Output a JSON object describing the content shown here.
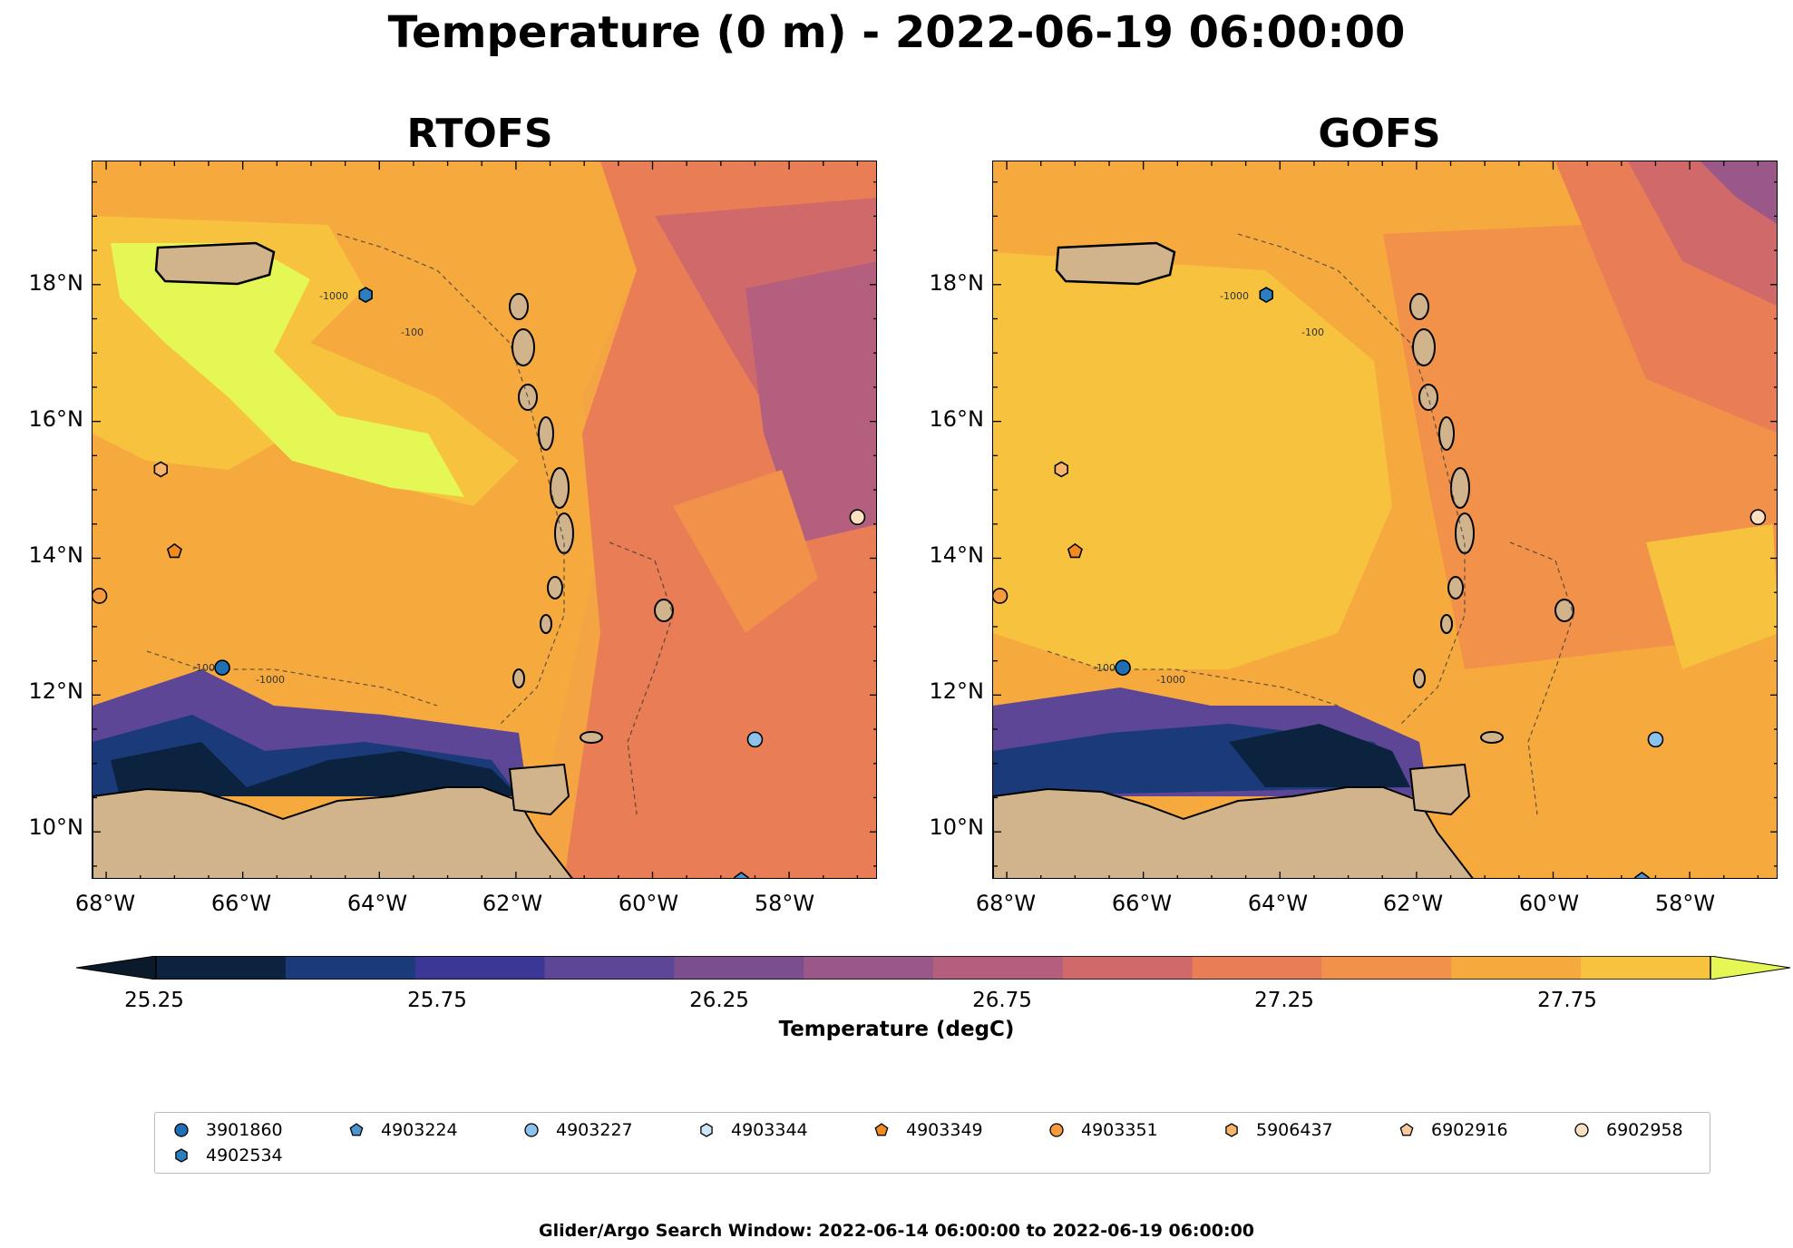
{
  "title": "Temperature (0 m) - 2022-06-19 06:00:00",
  "panels": [
    {
      "id": "rtofs",
      "title": "RTOFS"
    },
    {
      "id": "gofs",
      "title": "GOFS"
    }
  ],
  "axes": {
    "lat_labels": [
      "18°N",
      "16°N",
      "14°N",
      "12°N",
      "10°N"
    ],
    "lon_labels": [
      "68°W",
      "66°W",
      "64°W",
      "62°W",
      "60°W",
      "58°W"
    ],
    "lon_range": [
      -68.2,
      -56.7
    ],
    "lat_range": [
      9.3,
      19.8
    ]
  },
  "contour_labels": [
    "-1000",
    "-100"
  ],
  "colorbar": {
    "label": "Temperature (degC)",
    "ticks": [
      "25.25",
      "25.75",
      "26.25",
      "26.75",
      "27.25",
      "27.75"
    ],
    "min": 25.25,
    "max": 27.75,
    "colors": [
      "#0c2340",
      "#1b3a7a",
      "#3b3797",
      "#5d4696",
      "#7b4f8e",
      "#9a5889",
      "#b55f7e",
      "#d06a6a",
      "#e97d55",
      "#f2924a",
      "#f6aa3e",
      "#f7c33e"
    ],
    "extend_low": "#0a1a2a",
    "extend_high": "#e5f755"
  },
  "legend": {
    "items": [
      {
        "label": "3901860",
        "shape": "circle",
        "color": "#1f6fb4"
      },
      {
        "label": "4903224",
        "shape": "pentagon",
        "color": "#4b93d1"
      },
      {
        "label": "4903227",
        "shape": "circle",
        "color": "#8cc3ec"
      },
      {
        "label": "4903344",
        "shape": "hexagon",
        "color": "#cfe6f7"
      },
      {
        "label": "4903349",
        "shape": "pentagon",
        "color": "#f28a1f"
      },
      {
        "label": "4903351",
        "shape": "circle",
        "color": "#f59a3d"
      },
      {
        "label": "5906437",
        "shape": "hexagon",
        "color": "#f9b46b"
      },
      {
        "label": "6902916",
        "shape": "pentagon",
        "color": "#fbc99a"
      },
      {
        "label": "6902958",
        "shape": "circle",
        "color": "#fde0c2"
      },
      {
        "label": "4902534",
        "shape": "hexagon",
        "color": "#2a7fc0"
      }
    ]
  },
  "markers": [
    {
      "id": "3901860",
      "lon": -66.3,
      "lat": 12.4,
      "shape": "circle",
      "color": "#1f6fb4"
    },
    {
      "id": "4903224",
      "lon": -58.7,
      "lat": 9.3,
      "shape": "pentagon",
      "color": "#4b93d1"
    },
    {
      "id": "4903227",
      "lon": -58.5,
      "lat": 11.35,
      "shape": "circle",
      "color": "#8cc3ec"
    },
    {
      "id": "4902534",
      "lon": -64.2,
      "lat": 17.85,
      "shape": "hexagon",
      "color": "#2a7fc0"
    },
    {
      "id": "4903349",
      "lon": -67.0,
      "lat": 14.1,
      "shape": "pentagon",
      "color": "#f28a1f"
    },
    {
      "id": "4903351",
      "lon": -68.1,
      "lat": 13.45,
      "shape": "circle",
      "color": "#f59a3d"
    },
    {
      "id": "5906437",
      "lon": -67.2,
      "lat": 15.3,
      "shape": "hexagon",
      "color": "#f9b46b"
    },
    {
      "id": "6902958",
      "lon": -57.0,
      "lat": 14.6,
      "shape": "circle",
      "color": "#fde0c2"
    }
  ],
  "footer": "Glider/Argo Search Window: 2022-06-14 06:00:00 to 2022-06-19 06:00:00"
}
